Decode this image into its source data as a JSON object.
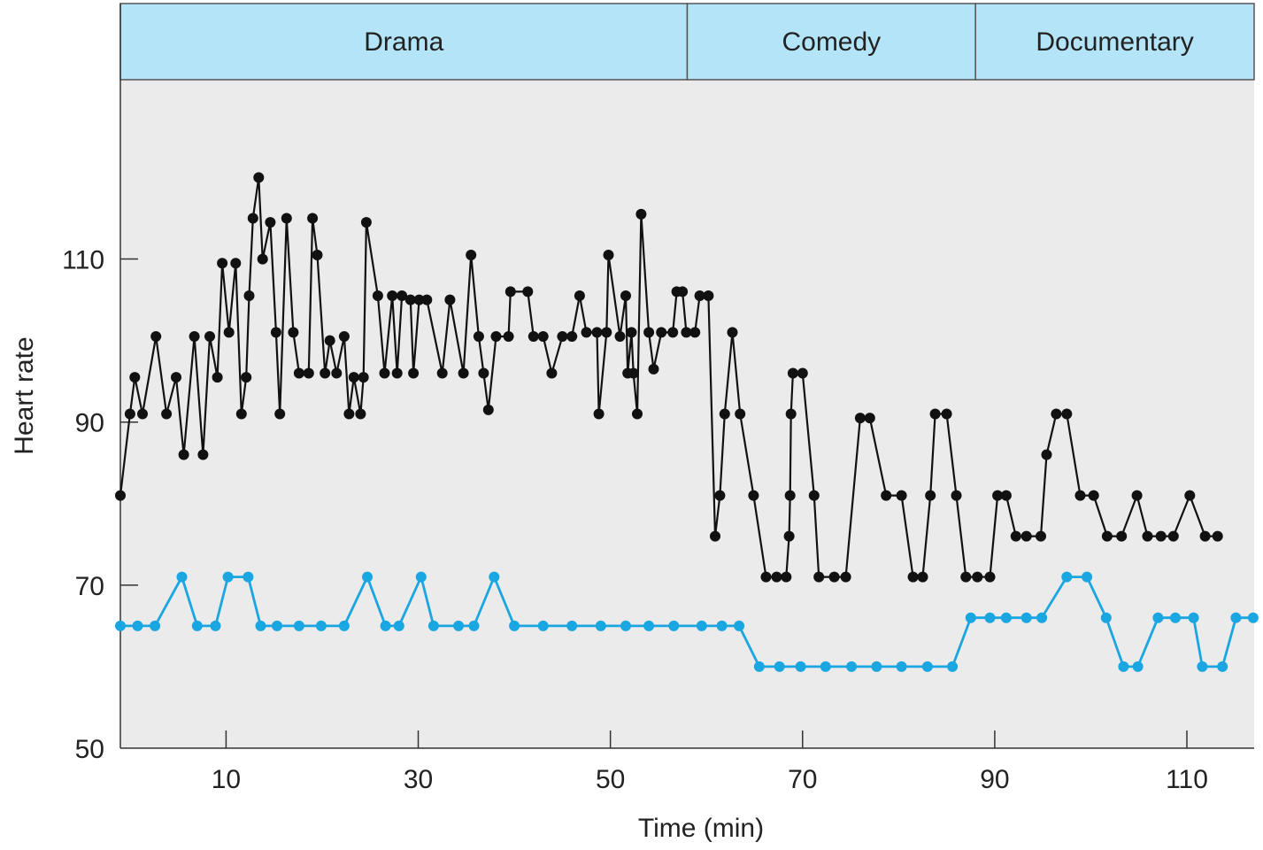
{
  "chart_data": {
    "type": "line",
    "title": "",
    "xlabel": "Time (min)",
    "ylabel": "Heart rate",
    "xlim": [
      -1,
      117
    ],
    "ylim": [
      50,
      132
    ],
    "xticks": [
      10,
      30,
      50,
      70,
      90,
      110
    ],
    "yticks": [
      50,
      70,
      90,
      110
    ],
    "grid": false,
    "legend": "none",
    "colors": {
      "plot_background": "#ebebeb",
      "segment_band": "#b3e4f7",
      "series_1": "#111111",
      "series_2": "#1aa6e0"
    },
    "segments": [
      {
        "label": "Drama",
        "start": -1,
        "end": 58
      },
      {
        "label": "Comedy",
        "start": 58,
        "end": 88
      },
      {
        "label": "Documentary",
        "start": 88,
        "end": 117
      }
    ],
    "series": [
      {
        "color": "#111111",
        "points": [
          [
            -1,
            81
          ],
          [
            0,
            91
          ],
          [
            0.5,
            95.5
          ],
          [
            1.3,
            91
          ],
          [
            2.7,
            100.5
          ],
          [
            3.8,
            91
          ],
          [
            4.8,
            95.5
          ],
          [
            5.6,
            86
          ],
          [
            6.7,
            100.5
          ],
          [
            7.6,
            86
          ],
          [
            8.3,
            100.5
          ],
          [
            9.1,
            95.5
          ],
          [
            9.6,
            109.5
          ],
          [
            10.3,
            101
          ],
          [
            11,
            109.5
          ],
          [
            11.6,
            91
          ],
          [
            12.1,
            95.5
          ],
          [
            12.4,
            105.5
          ],
          [
            12.8,
            115
          ],
          [
            13.4,
            120
          ],
          [
            13.8,
            110
          ],
          [
            14.6,
            114.5
          ],
          [
            15.2,
            101
          ],
          [
            15.6,
            91
          ],
          [
            16.3,
            115
          ],
          [
            17,
            101
          ],
          [
            17.6,
            96
          ],
          [
            18.6,
            96
          ],
          [
            19,
            115
          ],
          [
            19.5,
            110.5
          ],
          [
            20.3,
            96
          ],
          [
            20.8,
            100
          ],
          [
            21.5,
            96
          ],
          [
            22.3,
            100.5
          ],
          [
            22.8,
            91
          ],
          [
            23.3,
            95.5
          ],
          [
            24,
            91
          ],
          [
            24.3,
            95.5
          ],
          [
            24.6,
            114.5
          ],
          [
            25.8,
            105.5
          ],
          [
            26.5,
            96
          ],
          [
            27.3,
            105.5
          ],
          [
            27.8,
            96
          ],
          [
            28.3,
            105.5
          ],
          [
            29.2,
            105
          ],
          [
            29.5,
            96
          ],
          [
            30.1,
            105
          ],
          [
            30.9,
            105
          ],
          [
            32.5,
            96
          ],
          [
            33.3,
            105
          ],
          [
            34.7,
            96
          ],
          [
            35.5,
            110.5
          ],
          [
            36.3,
            100.5
          ],
          [
            36.8,
            96
          ],
          [
            37.3,
            91.5
          ],
          [
            38.1,
            100.5
          ],
          [
            39.4,
            100.5
          ],
          [
            39.6,
            106
          ],
          [
            41.4,
            106
          ],
          [
            42,
            100.5
          ],
          [
            43,
            100.5
          ],
          [
            43.9,
            96
          ],
          [
            45,
            100.5
          ],
          [
            46,
            100.5
          ],
          [
            46.8,
            105.5
          ],
          [
            47.5,
            101
          ],
          [
            48.6,
            101
          ],
          [
            48.8,
            91
          ],
          [
            49.6,
            101
          ],
          [
            49.8,
            110.5
          ],
          [
            51,
            100.5
          ],
          [
            51.6,
            105.5
          ],
          [
            51.8,
            96
          ],
          [
            52.2,
            101
          ],
          [
            52.4,
            96
          ],
          [
            52.8,
            91
          ],
          [
            53.2,
            115.5
          ],
          [
            54,
            101
          ],
          [
            54.5,
            96.5
          ],
          [
            55.3,
            101
          ],
          [
            56.5,
            101
          ],
          [
            56.9,
            106
          ],
          [
            57.5,
            106
          ],
          [
            57.9,
            101
          ],
          [
            58.8,
            101
          ],
          [
            59.3,
            105.5
          ],
          [
            60.2,
            105.5
          ],
          [
            60.9,
            76
          ],
          [
            61.4,
            81
          ],
          [
            61.9,
            91
          ],
          [
            62.7,
            101
          ],
          [
            63.5,
            91
          ],
          [
            64.9,
            81
          ],
          [
            66.2,
            71
          ],
          [
            67.3,
            71
          ],
          [
            68.3,
            71
          ],
          [
            68.6,
            76
          ],
          [
            68.7,
            81
          ],
          [
            68.8,
            91
          ],
          [
            69,
            96
          ],
          [
            70,
            96
          ],
          [
            71.2,
            81
          ],
          [
            71.7,
            71
          ],
          [
            73.3,
            71
          ],
          [
            74.5,
            71
          ],
          [
            76,
            90.5
          ],
          [
            77,
            90.5
          ],
          [
            78.7,
            81
          ],
          [
            80.3,
            81
          ],
          [
            81.5,
            71
          ],
          [
            82.5,
            71
          ],
          [
            83.3,
            81
          ],
          [
            83.8,
            91
          ],
          [
            85,
            91
          ],
          [
            86,
            81
          ],
          [
            87,
            71
          ],
          [
            88.2,
            71
          ],
          [
            89.5,
            71
          ],
          [
            90.3,
            81
          ],
          [
            91.2,
            81
          ],
          [
            92.2,
            76
          ],
          [
            93.3,
            76
          ],
          [
            94.8,
            76
          ],
          [
            95.4,
            86
          ],
          [
            96.4,
            91
          ],
          [
            97.5,
            91
          ],
          [
            98.9,
            81
          ],
          [
            100.3,
            81
          ],
          [
            101.7,
            76
          ],
          [
            103.2,
            76
          ],
          [
            104.8,
            81
          ],
          [
            105.9,
            76
          ],
          [
            107.3,
            76
          ],
          [
            108.6,
            76
          ],
          [
            110.3,
            81
          ],
          [
            111.9,
            76
          ],
          [
            113.2,
            76
          ]
        ]
      },
      {
        "color": "#1aa6e0",
        "points": [
          [
            -1,
            65
          ],
          [
            0.8,
            65
          ],
          [
            2.6,
            65
          ],
          [
            5.4,
            71
          ],
          [
            7,
            65
          ],
          [
            8.9,
            65
          ],
          [
            10.2,
            71
          ],
          [
            12.3,
            71
          ],
          [
            13.6,
            65
          ],
          [
            15.3,
            65
          ],
          [
            17.6,
            65
          ],
          [
            19.9,
            65
          ],
          [
            22.3,
            65
          ],
          [
            24.7,
            71
          ],
          [
            26.6,
            65
          ],
          [
            28,
            65
          ],
          [
            30.3,
            71
          ],
          [
            31.6,
            65
          ],
          [
            34.2,
            65
          ],
          [
            35.8,
            65
          ],
          [
            37.9,
            71
          ],
          [
            40,
            65
          ],
          [
            43,
            65
          ],
          [
            46,
            65
          ],
          [
            49,
            65
          ],
          [
            51.6,
            65
          ],
          [
            54,
            65
          ],
          [
            56.6,
            65
          ],
          [
            59.5,
            65
          ],
          [
            61.6,
            65
          ],
          [
            63.4,
            65
          ],
          [
            65.5,
            60
          ],
          [
            67.6,
            60
          ],
          [
            69.8,
            60
          ],
          [
            72.4,
            60
          ],
          [
            75.1,
            60
          ],
          [
            77.7,
            60
          ],
          [
            80.3,
            60
          ],
          [
            83,
            60
          ],
          [
            85.6,
            60
          ],
          [
            87.5,
            66
          ],
          [
            89.5,
            66
          ],
          [
            91.2,
            66
          ],
          [
            93.3,
            66
          ],
          [
            94.9,
            66
          ],
          [
            97.5,
            71
          ],
          [
            99.6,
            71
          ],
          [
            101.6,
            66
          ],
          [
            103.4,
            60
          ],
          [
            104.9,
            60
          ],
          [
            107,
            66
          ],
          [
            108.8,
            66
          ],
          [
            110.7,
            66
          ],
          [
            111.6,
            60
          ],
          [
            113.7,
            60
          ],
          [
            115.1,
            66
          ],
          [
            116.9,
            66
          ]
        ]
      }
    ]
  }
}
